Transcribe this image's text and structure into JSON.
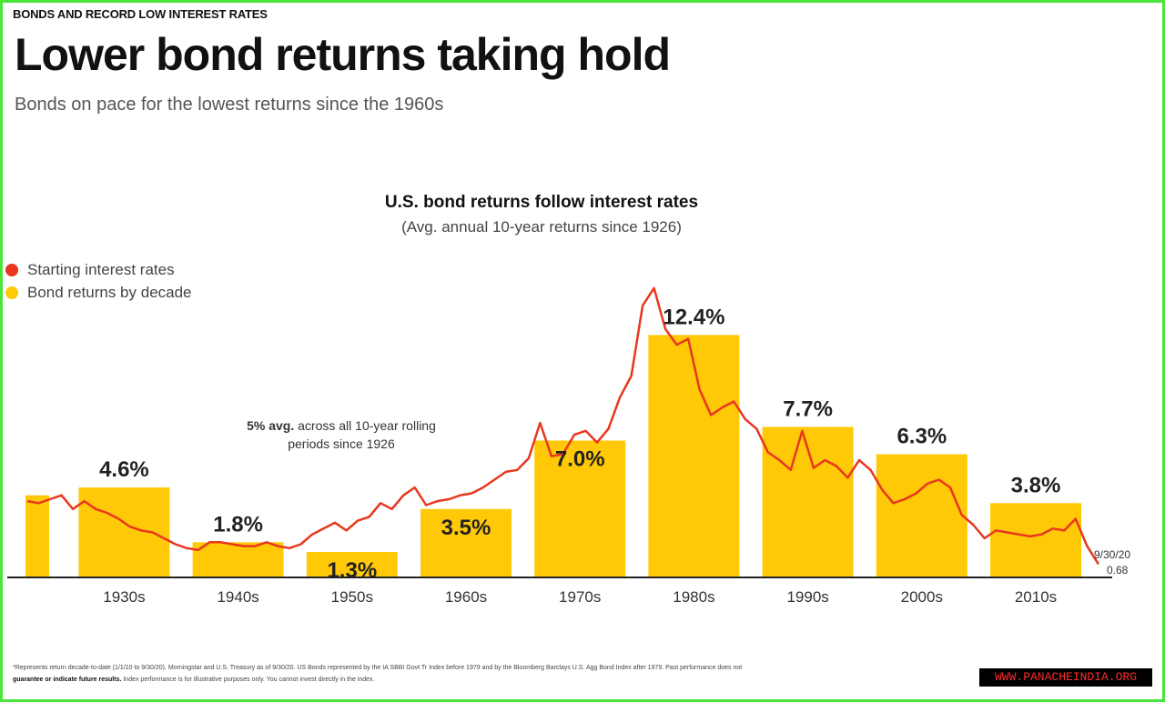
{
  "header": {
    "kicker": "BONDS AND RECORD LOW INTEREST RATES",
    "title": "Lower bond returns taking hold",
    "subtitle": "Bonds on pace for the lowest returns since the 1960s"
  },
  "legend": {
    "rates_label": "Starting interest rates",
    "returns_label": "Bond returns by decade",
    "rates_color": "#e8371e",
    "returns_color": "#ffc907"
  },
  "annotation": {
    "bold": "5% avg.",
    "rest": " across all 10-year rolling periods since 1926"
  },
  "chart_data": {
    "type": "bar",
    "title": "U.S. bond returns follow interest rates",
    "subtitle": "(Avg. annual 10-year returns since 1926)",
    "ylim": [
      0,
      15
    ],
    "categories": [
      "1930s",
      "1940s",
      "1950s",
      "1960s",
      "1970s",
      "1980s",
      "1990s",
      "2000s",
      "2010s"
    ],
    "series": [
      {
        "name": "Bond returns by decade",
        "values": [
          4.6,
          1.8,
          1.3,
          3.5,
          7.0,
          12.4,
          7.7,
          6.3,
          3.8
        ],
        "labels": [
          "4.6%",
          "1.8%",
          "1.3%",
          "3.5%",
          "7.0%",
          "12.4%",
          "7.7%",
          "6.3%",
          "3.8%"
        ]
      },
      {
        "name": "Starting interest rates",
        "type": "line",
        "x": [
          1926,
          1927,
          1928,
          1929,
          1930,
          1931,
          1932,
          1933,
          1934,
          1935,
          1936,
          1937,
          1938,
          1939,
          1940,
          1941,
          1942,
          1943,
          1944,
          1945,
          1946,
          1947,
          1948,
          1949,
          1950,
          1951,
          1952,
          1953,
          1954,
          1955,
          1956,
          1957,
          1958,
          1959,
          1960,
          1961,
          1962,
          1963,
          1964,
          1965,
          1966,
          1967,
          1968,
          1969,
          1970,
          1971,
          1972,
          1973,
          1974,
          1975,
          1976,
          1977,
          1978,
          1979,
          1980,
          1981,
          1982,
          1983,
          1984,
          1985,
          1986,
          1987,
          1988,
          1989,
          1990,
          1991,
          1992,
          1993,
          1994,
          1995,
          1996,
          1997,
          1998,
          1999,
          2000,
          2001,
          2002,
          2003,
          2004,
          2005,
          2006,
          2007,
          2008,
          2009,
          2010,
          2011,
          2012,
          2013,
          2014,
          2015,
          2016,
          2017,
          2018,
          2019,
          2020
        ],
        "values": [
          3.9,
          3.8,
          4.0,
          4.2,
          3.5,
          3.9,
          3.5,
          3.3,
          3.0,
          2.6,
          2.4,
          2.3,
          2.0,
          1.7,
          1.5,
          1.4,
          1.8,
          1.8,
          1.7,
          1.6,
          1.6,
          1.8,
          1.6,
          1.5,
          1.7,
          2.2,
          2.5,
          2.8,
          2.4,
          2.9,
          3.1,
          3.8,
          3.5,
          4.2,
          4.6,
          3.7,
          3.9,
          4.0,
          4.2,
          4.3,
          4.6,
          5.0,
          5.4,
          5.5,
          6.1,
          7.9,
          6.2,
          6.3,
          7.3,
          7.5,
          6.9,
          7.6,
          9.2,
          10.3,
          13.9,
          14.8,
          12.7,
          11.9,
          12.2,
          9.6,
          8.3,
          8.7,
          9.0,
          8.1,
          7.6,
          6.4,
          6.0,
          5.5,
          7.5,
          5.6,
          6.0,
          5.7,
          5.1,
          6.0,
          5.5,
          4.5,
          3.8,
          4.0,
          4.3,
          4.8,
          5.0,
          4.6,
          3.2,
          2.7,
          2.0,
          2.4,
          2.3,
          2.2,
          2.1,
          2.2,
          2.5,
          2.4,
          3.0,
          1.6,
          0.68
        ]
      }
    ],
    "end_label_date": "9/30/20",
    "end_label_value": "0.68"
  },
  "footnote": {
    "line1": "*Represents return decade-to-date (1/1/10 to 9/30/20). Morningstar and U.S. Treasury as of 9/30/20. US Bonds represented by the IA SBBI Govt Tr Index before 1979 and by the Bloomberg Barclays U.S. Agg Bond Index after 1979. Past performance does not",
    "line2_bold": "guarantee or indicate future results.",
    "line2_rest": " Index performance is for illustrative purposes only. You cannot invest directly in the index."
  },
  "watermark": "WWW.PANACHEINDIA.ORG"
}
